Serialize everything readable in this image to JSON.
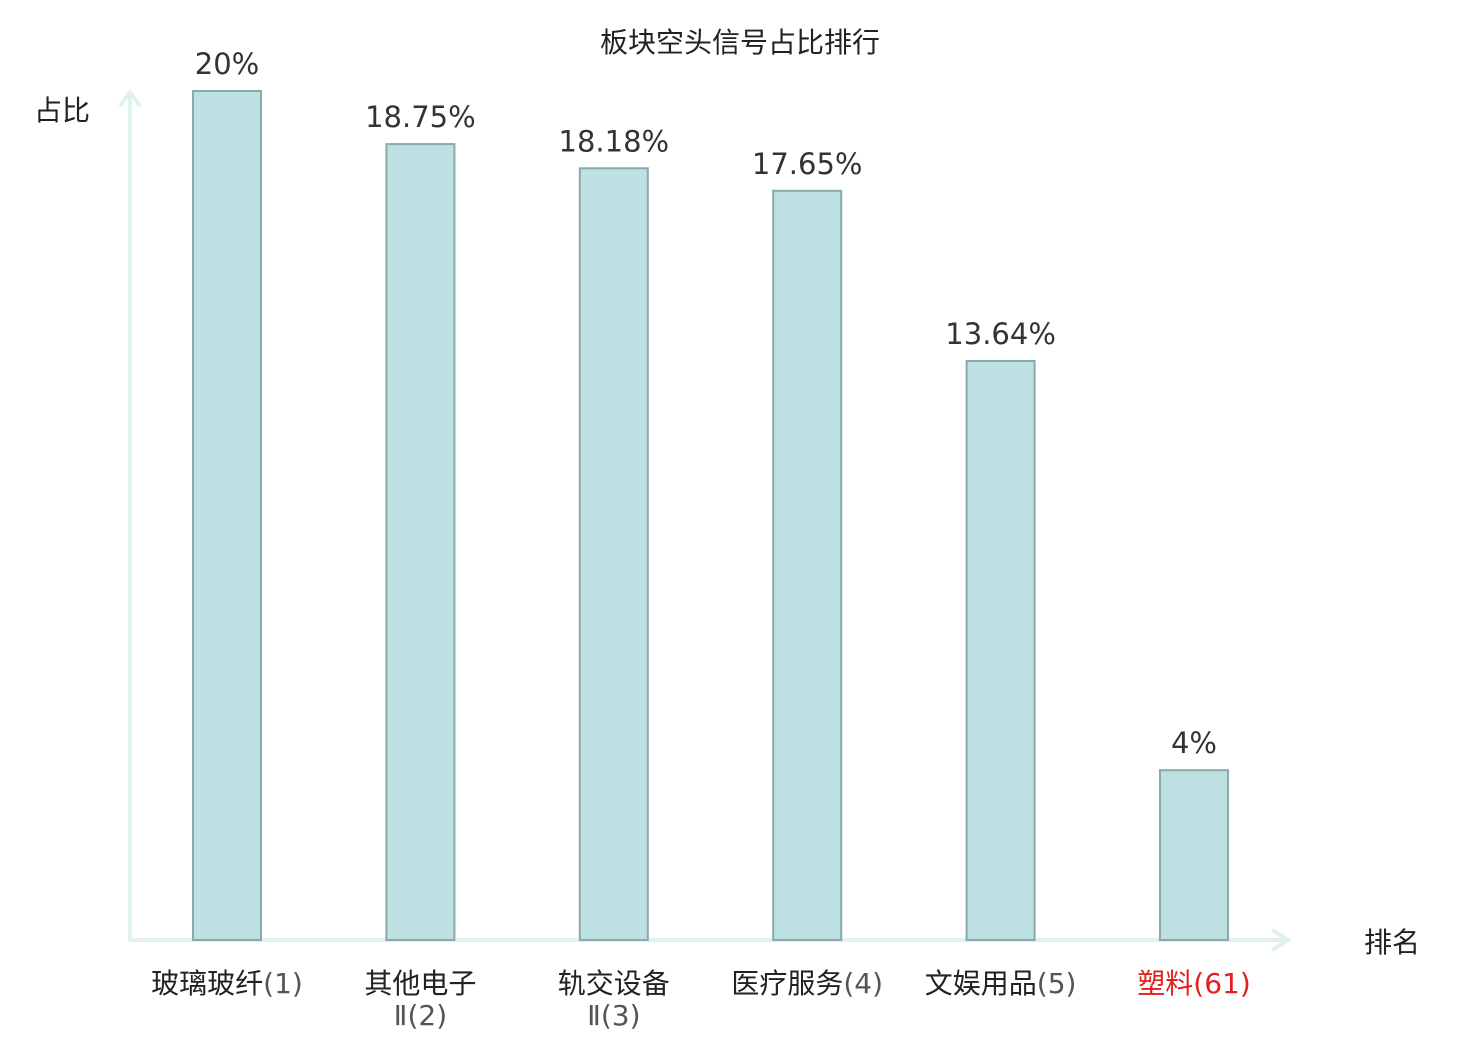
{
  "chart_data": {
    "type": "bar",
    "title": "板块空头信号占比排行",
    "ylabel": "占比",
    "xlabel": "排名",
    "categories": [
      {
        "name_lines": [
          "玻璃玻纤"
        ],
        "rank": "(1)",
        "highlight": false
      },
      {
        "name_lines": [
          "其他电子",
          "Ⅱ"
        ],
        "rank": "(2)",
        "highlight": false
      },
      {
        "name_lines": [
          "轨交设备",
          "Ⅱ"
        ],
        "rank": "(3)",
        "highlight": false
      },
      {
        "name_lines": [
          "医疗服务"
        ],
        "rank": "(4)",
        "highlight": false
      },
      {
        "name_lines": [
          "文娱用品"
        ],
        "rank": "(5)",
        "highlight": false
      },
      {
        "name_lines": [
          "塑料"
        ],
        "rank": "(61)",
        "highlight": true
      }
    ],
    "values": [
      20,
      18.75,
      18.18,
      17.65,
      13.64,
      4
    ],
    "value_labels": [
      "20%",
      "18.75%",
      "18.18%",
      "17.65%",
      "13.64%",
      "4%"
    ],
    "ylim": [
      0,
      20
    ],
    "grid": false,
    "colors": {
      "bar_fill": "#bde0e3",
      "bar_stroke": "#8aa9ab",
      "axis": "#e0f2ef",
      "highlight": "#e0201c",
      "label": "#222222",
      "rank": "#555555"
    }
  }
}
